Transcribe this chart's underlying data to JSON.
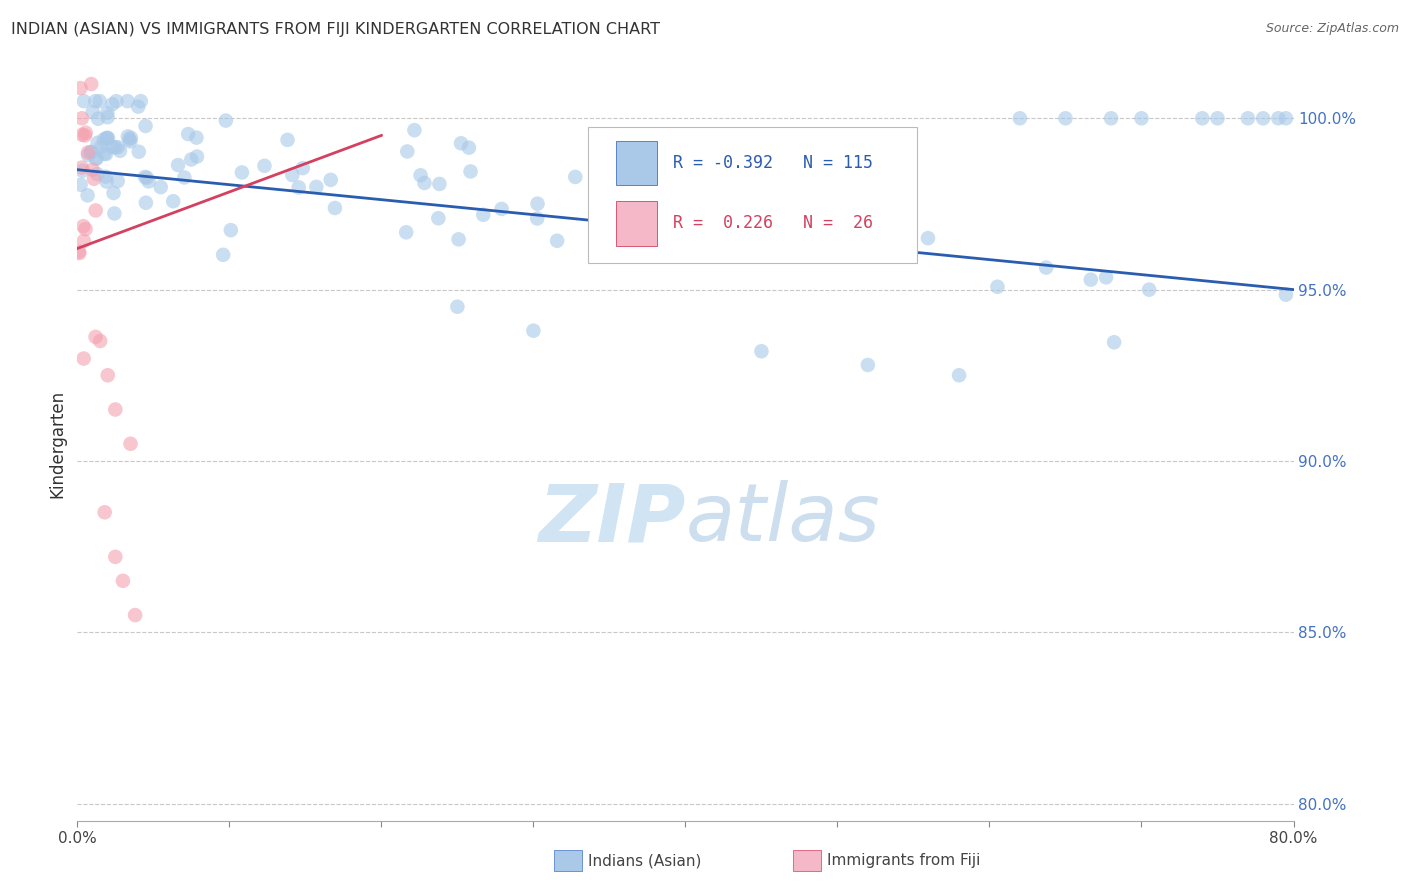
{
  "title": "INDIAN (ASIAN) VS IMMIGRANTS FROM FIJI KINDERGARTEN CORRELATION CHART",
  "source": "Source: ZipAtlas.com",
  "ylabel": "Kindergarten",
  "watermark": "ZIPatlas",
  "xlim": [
    0.0,
    80.0
  ],
  "ylim_bottom": 79.5,
  "ylim_top": 101.5,
  "plot_area_ymin": 92.0,
  "y_ticks": [
    80.0,
    85.0,
    90.0,
    95.0,
    100.0
  ],
  "legend_r_blue": "-0.392",
  "legend_n_blue": "115",
  "legend_r_pink": "0.226",
  "legend_n_pink": "26",
  "blue_color": "#a8c8e8",
  "pink_color": "#f4a0b0",
  "trend_blue_color": "#2a5db0",
  "trend_pink_color": "#d44060",
  "background_color": "#ffffff",
  "grid_color": "#c8c8c8",
  "ytick_color": "#4472c4",
  "title_color": "#333333",
  "source_color": "#666666",
  "watermark_color": "#d0e4f4"
}
